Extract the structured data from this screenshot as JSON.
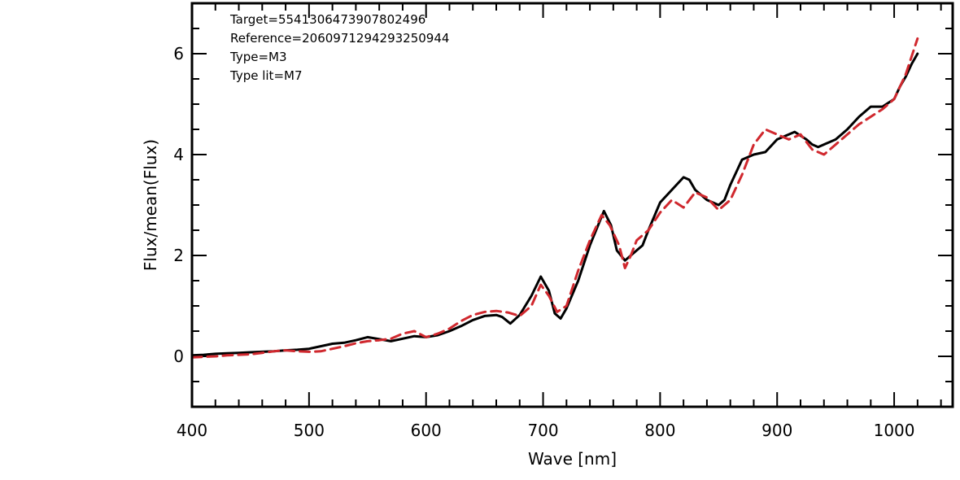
{
  "chart_data": {
    "type": "line",
    "title": "",
    "xlabel": "Wave [nm]",
    "ylabel": "Flux/mean(Flux)",
    "xlim": [
      400,
      1050
    ],
    "ylim": [
      -1,
      7
    ],
    "xticks": [
      400,
      500,
      600,
      700,
      800,
      900,
      1000
    ],
    "yticks": [
      0,
      2,
      4,
      6
    ],
    "xtick_labels": [
      "400",
      "500",
      "600",
      "700",
      "800",
      "900",
      "1000"
    ],
    "ytick_labels": [
      "0",
      "2",
      "4",
      "6"
    ],
    "x_minor_step": 20,
    "y_minor_step": 0.5,
    "grid": false,
    "annotations": [
      "Target=5541306473907802496",
      "Reference=2060971294293250944",
      "Type=M3",
      "Type lit=M7"
    ],
    "series": [
      {
        "style": "solid",
        "color": "#000000",
        "x": [
          400,
          410,
          420,
          430,
          440,
          450,
          460,
          470,
          480,
          490,
          500,
          510,
          520,
          530,
          540,
          550,
          560,
          570,
          580,
          590,
          600,
          610,
          620,
          630,
          640,
          650,
          660,
          665,
          672,
          680,
          690,
          698,
          705,
          710,
          715,
          720,
          730,
          740,
          752,
          758,
          763,
          770,
          775,
          780,
          785,
          790,
          800,
          810,
          820,
          825,
          830,
          840,
          850,
          855,
          860,
          870,
          880,
          890,
          900,
          915,
          925,
          930,
          935,
          940,
          950,
          960,
          970,
          980,
          990,
          1000,
          1005,
          1010,
          1015,
          1020
        ],
        "y": [
          0.02,
          0.03,
          0.05,
          0.06,
          0.07,
          0.08,
          0.09,
          0.1,
          0.12,
          0.13,
          0.15,
          0.2,
          0.25,
          0.27,
          0.32,
          0.38,
          0.34,
          0.3,
          0.35,
          0.4,
          0.38,
          0.42,
          0.5,
          0.6,
          0.72,
          0.8,
          0.82,
          0.78,
          0.65,
          0.82,
          1.2,
          1.58,
          1.3,
          0.85,
          0.75,
          0.95,
          1.5,
          2.2,
          2.88,
          2.6,
          2.1,
          1.9,
          2.0,
          2.1,
          2.2,
          2.5,
          3.05,
          3.3,
          3.55,
          3.5,
          3.3,
          3.1,
          3.0,
          3.1,
          3.4,
          3.9,
          4.0,
          4.05,
          4.3,
          4.45,
          4.3,
          4.2,
          4.15,
          4.2,
          4.3,
          4.5,
          4.75,
          4.95,
          4.95,
          5.1,
          5.35,
          5.55,
          5.8,
          6.0
        ]
      },
      {
        "style": "dashed",
        "color": "#d0282e",
        "x": [
          400,
          410,
          420,
          430,
          440,
          450,
          460,
          470,
          480,
          490,
          500,
          510,
          520,
          530,
          540,
          550,
          560,
          570,
          580,
          590,
          600,
          610,
          620,
          630,
          640,
          650,
          660,
          670,
          680,
          690,
          698,
          705,
          712,
          720,
          730,
          740,
          750,
          757,
          765,
          770,
          775,
          780,
          790,
          800,
          810,
          820,
          830,
          840,
          850,
          860,
          870,
          880,
          890,
          900,
          910,
          920,
          930,
          940,
          950,
          960,
          970,
          980,
          990,
          1000,
          1010,
          1020
        ],
        "y": [
          -0.02,
          -0.01,
          0.0,
          0.02,
          0.03,
          0.04,
          0.07,
          0.1,
          0.12,
          0.1,
          0.09,
          0.1,
          0.15,
          0.2,
          0.26,
          0.3,
          0.32,
          0.35,
          0.45,
          0.5,
          0.38,
          0.45,
          0.55,
          0.7,
          0.82,
          0.88,
          0.9,
          0.87,
          0.8,
          1.0,
          1.42,
          1.2,
          0.88,
          1.0,
          1.7,
          2.3,
          2.8,
          2.6,
          2.2,
          1.75,
          2.0,
          2.3,
          2.5,
          2.85,
          3.1,
          2.95,
          3.25,
          3.15,
          2.9,
          3.1,
          3.6,
          4.2,
          4.5,
          4.4,
          4.3,
          4.4,
          4.1,
          4.0,
          4.2,
          4.4,
          4.6,
          4.75,
          4.9,
          5.1,
          5.6,
          6.3
        ]
      }
    ]
  }
}
